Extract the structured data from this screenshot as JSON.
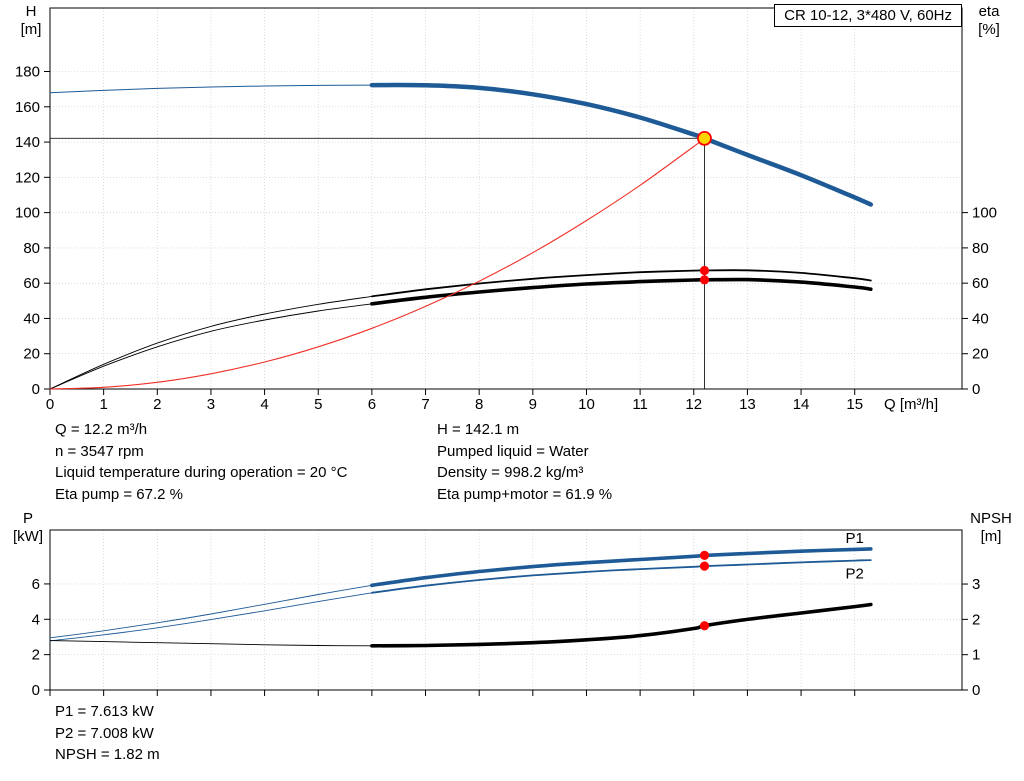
{
  "title_box": {
    "label": "CR 10-12, 3*480 V, 60Hz"
  },
  "top_chart": {
    "y_label": "H",
    "y_unit": "[m]",
    "y2_label": "eta",
    "y2_unit": "[%]",
    "x_label": "Q [m³/h]"
  },
  "bottom_chart": {
    "y_label": "P",
    "y_unit": "[kW]",
    "y2_label": "NPSH",
    "y2_unit": "[m]"
  },
  "info_top": {
    "left": [
      "Q = 12.2 m³/h",
      "n = 3547 rpm",
      "Liquid temperature during operation = 20 °C",
      "Eta pump = 67.2 %"
    ],
    "right": [
      "H = 142.1 m",
      "Pumped liquid = Water",
      "Density = 998.2 kg/m³",
      "Eta pump+motor = 61.9 %"
    ]
  },
  "info_bottom": [
    "P1 = 7.613 kW",
    "P2 = 7.008 kW",
    "NPSH = 1.82 m"
  ],
  "colors": {
    "curve_blue": "#1d5a96",
    "curve_black": "#000000",
    "system_red": "#f03028",
    "dot_red": "#ff0000",
    "duty_fill": "#ffd400",
    "grid": "#c6c6c6",
    "guide": "#1a1a1a"
  },
  "chart_data": [
    {
      "type": "line",
      "title": "CR 10-12, 3*480 V, 60Hz",
      "xlabel": "Q [m³/h]",
      "ylabel": "H [m]",
      "y2label": "eta [%]",
      "x_range": [
        0,
        17.0
      ],
      "x_ticks": [
        0,
        1,
        2,
        3,
        4,
        5,
        6,
        7,
        8,
        9,
        10,
        11,
        12,
        13,
        14,
        15
      ],
      "x_tick_labels": true,
      "y_range": [
        0,
        216
      ],
      "y_ticks": [
        0,
        20,
        40,
        60,
        80,
        100,
        120,
        140,
        160,
        180
      ],
      "y2_range": [
        0,
        216
      ],
      "y2_ticks": [
        0,
        20,
        40,
        60,
        80,
        100
      ],
      "series": [
        {
          "name": "pump-head-QH",
          "axis": "y",
          "color": "#1d5a96",
          "thin": 1,
          "thick": 4.5,
          "thick_from": 6,
          "points": [
            [
              0,
              168
            ],
            [
              1,
              169.3
            ],
            [
              2,
              170.4
            ],
            [
              3,
              171.2
            ],
            [
              4,
              171.8
            ],
            [
              5,
              172.1
            ],
            [
              6,
              172.3
            ],
            [
              7,
              172.2
            ],
            [
              8,
              170.7
            ],
            [
              9,
              167.1
            ],
            [
              10,
              161.5
            ],
            [
              11,
              153.9
            ],
            [
              12,
              144.3
            ],
            [
              12.2,
              142.1
            ],
            [
              13,
              132.7
            ],
            [
              14,
              121.2
            ],
            [
              15,
              108.6
            ],
            [
              15.3,
              104.6
            ]
          ]
        },
        {
          "name": "eta-pump",
          "axis": "y2",
          "color": "#000000",
          "thin": 0.9,
          "thick": 1.8,
          "thick_from": 6,
          "points": [
            [
              0,
              0
            ],
            [
              1,
              14
            ],
            [
              2,
              26
            ],
            [
              3,
              35.5
            ],
            [
              4,
              42.5
            ],
            [
              5,
              48
            ],
            [
              6,
              52.5
            ],
            [
              7,
              56.5
            ],
            [
              8,
              59.8
            ],
            [
              9,
              62.5
            ],
            [
              10,
              64.6
            ],
            [
              11,
              66.2
            ],
            [
              12,
              67.1
            ],
            [
              12.2,
              67.2
            ],
            [
              13,
              67.3
            ],
            [
              14,
              65.8
            ],
            [
              15,
              62.8
            ],
            [
              15.3,
              61.5
            ]
          ]
        },
        {
          "name": "eta-pump-motor",
          "axis": "y2",
          "color": "#000000",
          "thin": 0.9,
          "thick": 3.6,
          "thick_from": 6,
          "points": [
            [
              0,
              0
            ],
            [
              1,
              12.9
            ],
            [
              2,
              23.9
            ],
            [
              3,
              32.7
            ],
            [
              4,
              39.1
            ],
            [
              5,
              44.2
            ],
            [
              6,
              48.3
            ],
            [
              7,
              52
            ],
            [
              8,
              55
            ],
            [
              9,
              57.5
            ],
            [
              10,
              59.5
            ],
            [
              11,
              60.9
            ],
            [
              12,
              61.8
            ],
            [
              12.2,
              61.9
            ],
            [
              13,
              62
            ],
            [
              14,
              60.6
            ],
            [
              15,
              57.8
            ],
            [
              15.3,
              56.6
            ]
          ]
        },
        {
          "name": "system-curve",
          "axis": "y",
          "color": "#f03028",
          "thin": 1.1,
          "thick": 1.1,
          "thick_from": null,
          "points": [
            [
              0,
              0
            ],
            [
              1,
              0.95
            ],
            [
              2,
              3.8
            ],
            [
              3,
              8.6
            ],
            [
              4,
              15.3
            ],
            [
              5,
              23.9
            ],
            [
              6,
              34.4
            ],
            [
              7,
              46.8
            ],
            [
              8,
              61.1
            ],
            [
              9,
              77.3
            ],
            [
              10,
              95.5
            ],
            [
              11,
              115.5
            ],
            [
              12,
              137.5
            ],
            [
              12.2,
              142.1
            ]
          ]
        }
      ],
      "guides": [
        {
          "type": "h",
          "axis": "y",
          "v": 142.1,
          "q1": 0,
          "q2": 12.2
        },
        {
          "type": "v",
          "axis": "y",
          "q": 12.2,
          "v1": 0,
          "v2": 142.1
        }
      ],
      "markers": [
        {
          "q": 12.2,
          "v": 142.1,
          "axis": "y",
          "style": "duty"
        },
        {
          "q": 12.2,
          "v": 67.2,
          "axis": "y2",
          "style": "dot"
        },
        {
          "q": 12.2,
          "v": 61.9,
          "axis": "y2",
          "style": "dot"
        }
      ],
      "labels": []
    },
    {
      "type": "line",
      "xlabel": "Q [m³/h]",
      "ylabel": "P [kW]",
      "y2label": "NPSH [m]",
      "x_range": [
        0,
        17.0
      ],
      "x_ticks": [
        0,
        1,
        2,
        3,
        4,
        5,
        6,
        7,
        8,
        9,
        10,
        11,
        12,
        13,
        14,
        15
      ],
      "x_tick_labels": false,
      "y_range": [
        0,
        9.05
      ],
      "y_ticks": [
        0,
        2,
        4,
        6
      ],
      "y2_range": [
        0,
        4.53
      ],
      "y2_ticks": [
        0,
        1,
        2,
        3
      ],
      "series": [
        {
          "name": "P1",
          "axis": "y",
          "color": "#1d5a96",
          "thin": 0.9,
          "thick": 3.6,
          "thick_from": 6,
          "points": [
            [
              0,
              2.95
            ],
            [
              1,
              3.35
            ],
            [
              2,
              3.8
            ],
            [
              3,
              4.3
            ],
            [
              4,
              4.85
            ],
            [
              5,
              5.4
            ],
            [
              6,
              5.92
            ],
            [
              7,
              6.35
            ],
            [
              8,
              6.7
            ],
            [
              9,
              6.98
            ],
            [
              10,
              7.2
            ],
            [
              11,
              7.38
            ],
            [
              12,
              7.56
            ],
            [
              12.2,
              7.613
            ],
            [
              13,
              7.72
            ],
            [
              14,
              7.85
            ],
            [
              15,
              7.95
            ],
            [
              15.3,
              7.98
            ]
          ]
        },
        {
          "name": "P2",
          "axis": "y",
          "color": "#1d5a96",
          "thin": 0.9,
          "thick": 1.8,
          "thick_from": 6,
          "points": [
            [
              0,
              2.78
            ],
            [
              1,
              3.12
            ],
            [
              2,
              3.52
            ],
            [
              3,
              3.98
            ],
            [
              4,
              4.48
            ],
            [
              5,
              5.0
            ],
            [
              6,
              5.5
            ],
            [
              7,
              5.9
            ],
            [
              8,
              6.22
            ],
            [
              9,
              6.48
            ],
            [
              10,
              6.68
            ],
            [
              11,
              6.84
            ],
            [
              12,
              6.97
            ],
            [
              12.2,
              7.008
            ],
            [
              13,
              7.1
            ],
            [
              14,
              7.22
            ],
            [
              15,
              7.32
            ],
            [
              15.3,
              7.35
            ]
          ]
        },
        {
          "name": "NPSH",
          "axis": "y2",
          "color": "#000000",
          "thin": 0.9,
          "thick": 3.6,
          "thick_from": 6,
          "points": [
            [
              0,
              1.4
            ],
            [
              1,
              1.37
            ],
            [
              2,
              1.34
            ],
            [
              3,
              1.31
            ],
            [
              4,
              1.28
            ],
            [
              5,
              1.26
            ],
            [
              6,
              1.25
            ],
            [
              7,
              1.26
            ],
            [
              8,
              1.29
            ],
            [
              9,
              1.34
            ],
            [
              10,
              1.42
            ],
            [
              11,
              1.54
            ],
            [
              12,
              1.74
            ],
            [
              12.2,
              1.82
            ],
            [
              13,
              2.0
            ],
            [
              14,
              2.18
            ],
            [
              15,
              2.36
            ],
            [
              15.3,
              2.42
            ]
          ]
        }
      ],
      "guides": [],
      "markers": [
        {
          "q": 12.2,
          "v": 7.613,
          "axis": "y",
          "style": "dot"
        },
        {
          "q": 12.2,
          "v": 7.008,
          "axis": "y",
          "style": "dot"
        },
        {
          "q": 12.2,
          "v": 1.82,
          "axis": "y2",
          "style": "dot"
        }
      ],
      "labels": [
        {
          "text": "P1",
          "q": 15.0,
          "v": 8.6,
          "axis": "y",
          "color": "#1d5a96"
        },
        {
          "text": "P2",
          "q": 15.0,
          "v": 6.6,
          "axis": "y",
          "color": "#1d5a96"
        }
      ]
    }
  ]
}
